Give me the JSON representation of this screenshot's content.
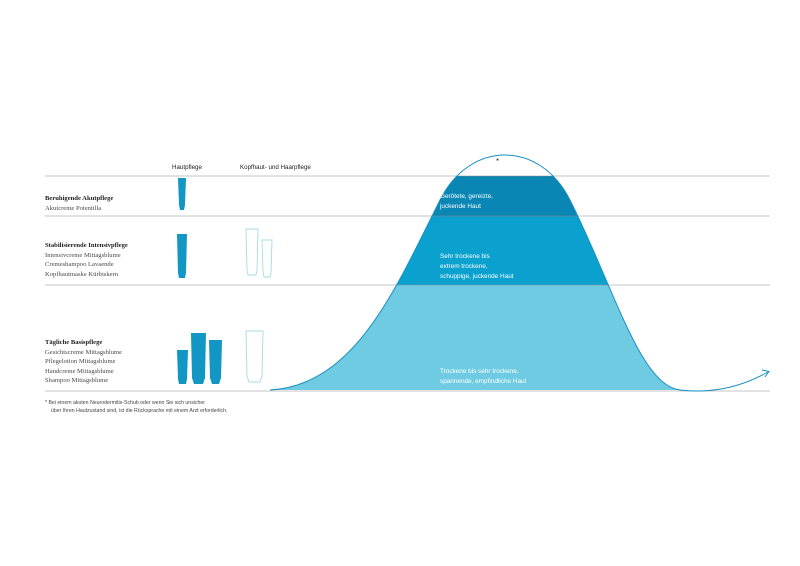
{
  "columns": {
    "skin": "Hautpflege",
    "scalp": "Kopfhaut- und Haarpflege"
  },
  "rows": [
    {
      "title": "Beruhigende Akutpflege",
      "items": [
        "Akutcreme Potentilla"
      ],
      "band_text": [
        "Gerötete, gereizte,",
        "juckende Haut"
      ],
      "band_color": "#0a86b4"
    },
    {
      "title": "Stabilisierende Intensivpflege",
      "items": [
        "Intensivcreme Mittagsblume",
        "Cremeshampoo Lavaende",
        "Kopfhautmaske Kürbiskern"
      ],
      "band_text": [
        "Sehr trockene bis",
        "extrem trockene,",
        "schuppige, juckende Haut"
      ],
      "band_color": "#0aa1cf"
    },
    {
      "title": "Tägliche Basispflege",
      "items": [
        "Gesichtscreme Mittagsblume",
        "Pflegelotion Mittagsblume",
        "Handcreme Mittagsblume",
        "Shampoo Mittagsblume"
      ],
      "band_text": [
        "Trockene bis sehr trockene,",
        "spannende, empfindliche Haut"
      ],
      "band_color": "#6fcbe1"
    }
  ],
  "curve": {
    "peak_mark": "*",
    "line_color": "#1a8fc2"
  },
  "footnote": {
    "line1": "*  Bei einem akuten Neurodermitis-Schub oder wenn Sie sich unsicher",
    "line2": "über Ihren Hautzustand sind, ist die Rücksprache mit einem Arzt erforderlich."
  },
  "product_colors": {
    "filled": "#1296c4",
    "outline": "#a9d8e8"
  }
}
